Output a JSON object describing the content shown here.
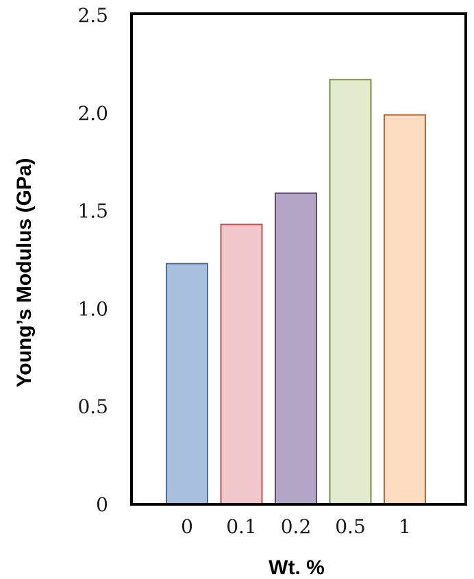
{
  "chart_data": {
    "type": "bar",
    "xlabel": "Wt. %",
    "ylabel": "Young’s Modulus (GPa)",
    "categories": [
      "0",
      "0.1",
      "0.2",
      "0.5",
      "1"
    ],
    "values": [
      1.23,
      1.43,
      1.59,
      2.17,
      1.99
    ],
    "ylim": [
      0,
      2.5
    ],
    "yticks": [
      "0",
      "0.5",
      "1.0",
      "1.5",
      "2.0",
      "2.5"
    ],
    "grid": false,
    "legend": "none",
    "colors": {
      "fills": [
        "#a8c0de",
        "#f0c8cb",
        "#b3a5c6",
        "#e2ebcd",
        "#fddcc2"
      ],
      "strokes": [
        "#4a6fa5",
        "#c0504d",
        "#5f497a",
        "#76923c",
        "#c0652c"
      ],
      "frame": "#000000"
    }
  }
}
